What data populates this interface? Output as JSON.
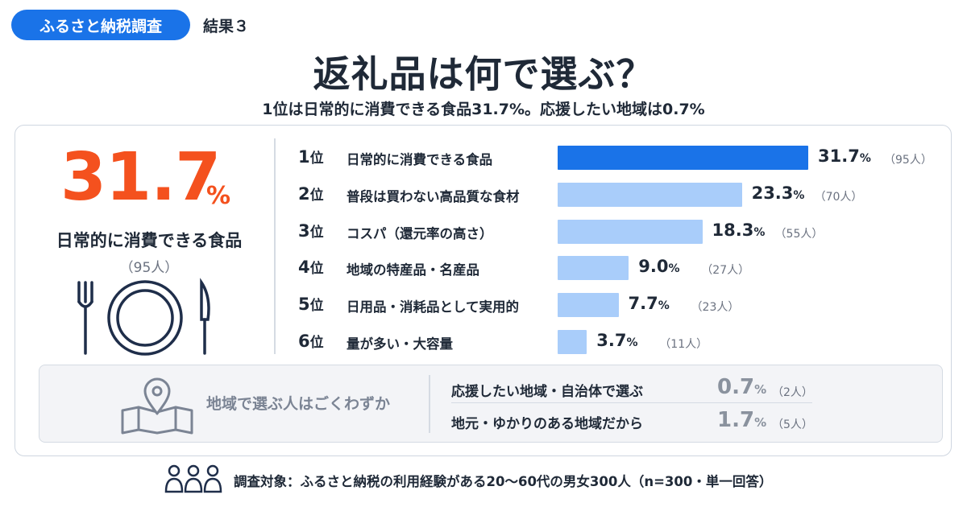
{
  "header": {
    "badge": "ふるさと納税調査",
    "badge_sub": "結果３",
    "title": "返礼品は何で選ぶ？",
    "subtitle": "1位は日常的に消費できる食品31.7%。応援したい地域は0.7%"
  },
  "highlight": {
    "value": "31.7",
    "unit": "%",
    "label": "日常的に消費できる食品",
    "count": "（95人）",
    "icon": "plate-fork-knife-icon"
  },
  "colors": {
    "accent": "#f4511e",
    "bar_top": "#1a73e8",
    "bar_other": "#a9cdfa",
    "badge": "#1a73e8"
  },
  "chart_data": {
    "type": "bar",
    "orientation": "horizontal",
    "categories": [
      "日常的に消費できる食品",
      "普段は買わない高品質な食材",
      "コスパ（還元率の高さ）",
      "地域の特産品・名産品",
      "日用品・消耗品として実用的",
      "量が多い・大容量"
    ],
    "ranks": [
      "1",
      "2",
      "3",
      "4",
      "5",
      "6"
    ],
    "rank_suffix": "位",
    "values": [
      31.7,
      23.3,
      18.3,
      9.0,
      7.7,
      3.7
    ],
    "value_labels": [
      "31.7",
      "23.3",
      "18.3",
      "9.0",
      "7.7",
      "3.7"
    ],
    "unit": "%",
    "counts": [
      "（95人）",
      "（70人）",
      "（55人）",
      "（27人）",
      "（23人）",
      "（11人）"
    ],
    "xlim": [
      0,
      31.7
    ],
    "grid": false,
    "legend": "none"
  },
  "sub_section": {
    "label": "地域で選ぶ人はごくわずか",
    "icon": "map-pin-icon",
    "rows": [
      {
        "label": "応援したい地域・自治体で選ぶ",
        "value": "0.7",
        "unit": "%",
        "count": "（2人）"
      },
      {
        "label": "地元・ゆかりのある地域だから",
        "value": "1.7",
        "unit": "%",
        "count": "（5人）"
      }
    ]
  },
  "footer": {
    "icon": "people-icon",
    "text": "調査対象：ふるさと納税の利用経験がある20〜60代の男女300人（n=300・単一回答）"
  }
}
